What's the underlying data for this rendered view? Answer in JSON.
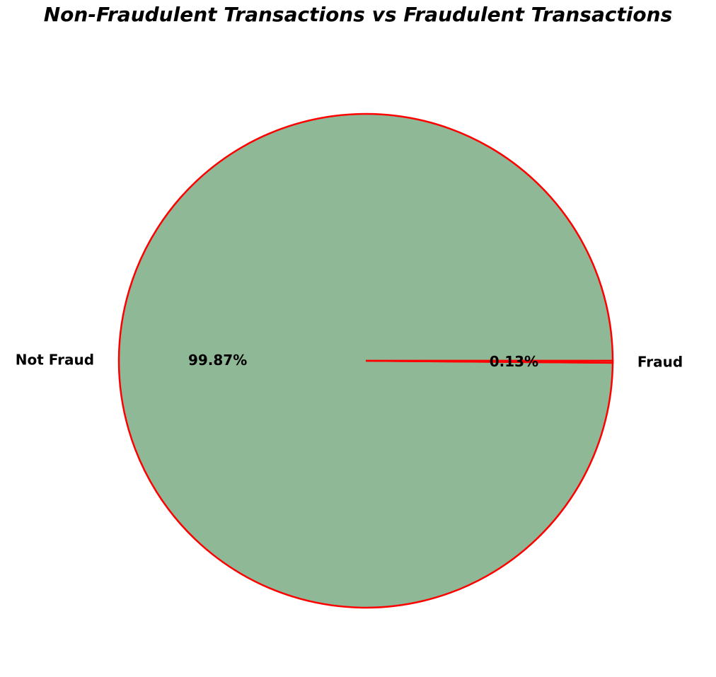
{
  "chart_data": {
    "type": "pie",
    "title": "Non-Fraudulent Transactions vs Fraudulent Transactions",
    "slices": [
      {
        "label": "Not Fraud",
        "value": 99.87,
        "pct_label": "99.87%",
        "color": "#8fb897"
      },
      {
        "label": "Fraud",
        "value": 0.13,
        "pct_label": "0.13%",
        "color": "#8fb897"
      }
    ],
    "edge_color": "#ff0000",
    "legend": false
  }
}
